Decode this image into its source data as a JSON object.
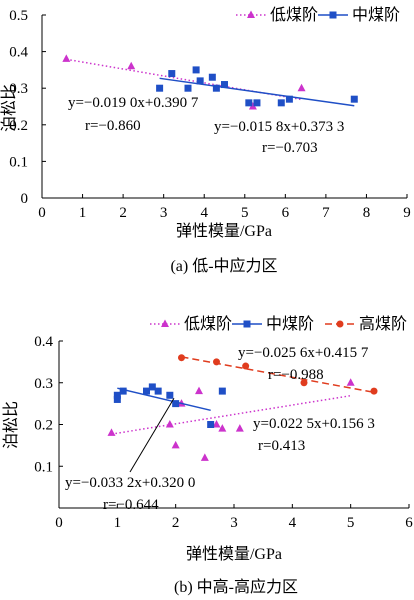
{
  "chart_data": [
    {
      "type": "scatter",
      "caption": "(a)  低-中应力区",
      "xlabel": "弹性模量/GPa",
      "ylabel": "泊松比",
      "xlim": [
        0,
        9
      ],
      "ylim": [
        0,
        0.5
      ],
      "xticks": [
        "0",
        "1",
        "2",
        "3",
        "4",
        "5",
        "6",
        "7",
        "8",
        "9"
      ],
      "yticks": [
        "0",
        "0.1",
        "0.2",
        "0.3",
        "0.4",
        "0.5"
      ],
      "legend_position": "top-right",
      "grid": false,
      "series": [
        {
          "name": "低煤阶",
          "color": "#cc33cc",
          "marker": "triangle",
          "line": "dotted",
          "points": [
            [
              0.6,
              0.38
            ],
            [
              2.2,
              0.36
            ],
            [
              5.2,
              0.25
            ],
            [
              6.4,
              0.3
            ]
          ],
          "fit": [
            [
              0.6,
              0.379
            ],
            [
              6.4,
              0.269
            ]
          ],
          "equation": "y=−0.019 0x+0.390 7",
          "r": "r=−0.860"
        },
        {
          "name": "中煤阶",
          "color": "#1f4fc6",
          "marker": "square",
          "line": "solid",
          "points": [
            [
              2.9,
              0.3
            ],
            [
              3.2,
              0.34
            ],
            [
              3.6,
              0.3
            ],
            [
              3.8,
              0.35
            ],
            [
              3.9,
              0.32
            ],
            [
              4.2,
              0.33
            ],
            [
              4.3,
              0.3
            ],
            [
              4.5,
              0.31
            ],
            [
              5.1,
              0.26
            ],
            [
              5.3,
              0.26
            ],
            [
              5.9,
              0.26
            ],
            [
              6.1,
              0.27
            ],
            [
              7.7,
              0.27
            ]
          ],
          "fit": [
            [
              2.9,
              0.327
            ],
            [
              7.7,
              0.252
            ]
          ],
          "equation": "y=−0.015 8x+0.373 3",
          "r": "r=−0.703"
        }
      ]
    },
    {
      "type": "scatter",
      "caption": "(b)  中高-高应力区",
      "xlabel": "弹性模量/GPa",
      "ylabel": "泊松比",
      "xlim": [
        0,
        6
      ],
      "ylim": [
        0,
        0.4
      ],
      "xticks": [
        "0",
        "1",
        "2",
        "3",
        "4",
        "5",
        "6"
      ],
      "yticks": [
        "0.1",
        "0.2",
        "0.3",
        "0.4"
      ],
      "legend_position": "top",
      "grid": false,
      "series": [
        {
          "name": "低煤阶",
          "color": "#cc33cc",
          "marker": "triangle",
          "line": "dotted",
          "points": [
            [
              0.9,
              0.18
            ],
            [
              1.9,
              0.2
            ],
            [
              2.0,
              0.15
            ],
            [
              2.1,
              0.25
            ],
            [
              2.4,
              0.28
            ],
            [
              2.5,
              0.12
            ],
            [
              2.7,
              0.2
            ],
            [
              2.8,
              0.19
            ],
            [
              3.1,
              0.19
            ],
            [
              5.0,
              0.3
            ]
          ],
          "fit": [
            [
              0.9,
              0.177
            ],
            [
              5.0,
              0.269
            ]
          ],
          "equation": "y=0.022 5x+0.156 3",
          "r": "r=0.413"
        },
        {
          "name": "中煤阶",
          "color": "#1f4fc6",
          "marker": "square",
          "line": "solid",
          "points": [
            [
              1.0,
              0.27
            ],
            [
              1.0,
              0.26
            ],
            [
              1.1,
              0.28
            ],
            [
              1.5,
              0.28
            ],
            [
              1.6,
              0.29
            ],
            [
              1.7,
              0.28
            ],
            [
              1.9,
              0.27
            ],
            [
              2.0,
              0.25
            ],
            [
              2.6,
              0.2
            ],
            [
              2.8,
              0.28
            ]
          ],
          "fit": [
            [
              1.0,
              0.287
            ],
            [
              2.6,
              0.234
            ]
          ],
          "equation": "y=−0.033 2x+0.320 0",
          "r": "r=−0.644"
        },
        {
          "name": "高煤阶",
          "color": "#e03c1e",
          "marker": "circle",
          "line": "dashed",
          "points": [
            [
              2.1,
              0.36
            ],
            [
              2.7,
              0.35
            ],
            [
              3.2,
              0.34
            ],
            [
              4.2,
              0.3
            ],
            [
              5.4,
              0.28
            ]
          ],
          "fit": [
            [
              2.1,
              0.362
            ],
            [
              5.4,
              0.277
            ]
          ],
          "equation": "y=−0.025 6x+0.415 7",
          "r": "r=−0.988"
        }
      ]
    }
  ]
}
